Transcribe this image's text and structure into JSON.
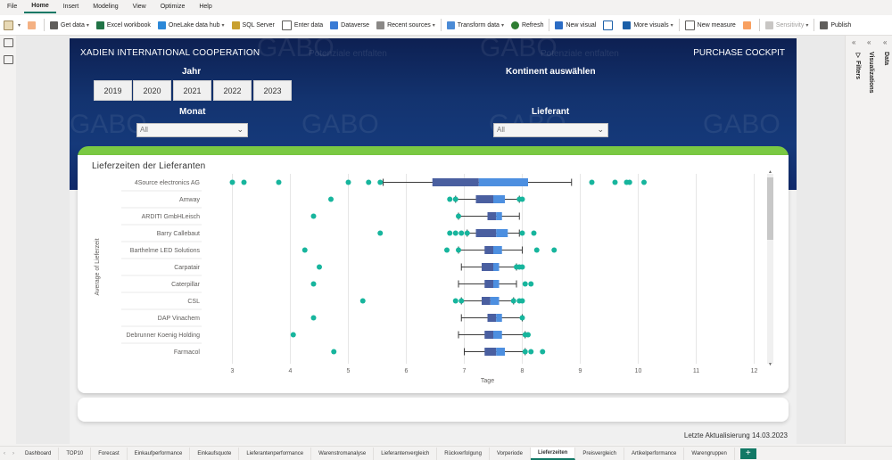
{
  "menu": [
    "File",
    "Home",
    "Insert",
    "Modeling",
    "View",
    "Optimize",
    "Help"
  ],
  "menu_active": "Home",
  "ribbon": {
    "get_data": "Get data",
    "excel": "Excel workbook",
    "onelake": "OneLake data hub",
    "sql": "SQL Server",
    "enter_data": "Enter data",
    "dataverse": "Dataverse",
    "recent": "Recent sources",
    "transform": "Transform data",
    "refresh": "Refresh",
    "new_visual": "New visual",
    "more_visuals": "More visuals",
    "new_measure": "New measure",
    "sensitivity": "Sensitivity",
    "publish": "Publish"
  },
  "report": {
    "company": "XADIEN INTERNATIONAL COOPERATION",
    "cockpit": "PURCHASE COCKPIT",
    "watermark": "GABO",
    "watermark_sub": "Potenziale entfalten",
    "jahr_label": "Jahr",
    "years": [
      "2019",
      "2020",
      "2021",
      "2022",
      "2023"
    ],
    "kontinent_label": "Kontinent auswählen",
    "monat_label": "Monat",
    "monat_value": "All",
    "lieferant_label": "Lieferant",
    "lieferant_value": "All",
    "last_update": "Letzte Aktualisierung  14.03.2023"
  },
  "right_pane": {
    "filters": "Filters",
    "visualizations": "Visualizations",
    "data": "Data"
  },
  "tabs": [
    "Dashboard",
    "TOP10",
    "Forecast",
    "Einkaufperformance",
    "Einkaufsquote",
    "Lieferantenperformance",
    "Warenstromanalyse",
    "Lieferantenvergleich",
    "Rückverfolgung",
    "Vorperiode",
    "Lieferzeiten",
    "Preisvergleich",
    "Artikelperformance",
    "Warengruppen"
  ],
  "active_tab": "Lieferzeiten",
  "colors": {
    "box_dark": "#4a5fa0",
    "box_light": "#4d8fe0",
    "outlier": "#17b59d",
    "green": "#7ac943",
    "navy": "#13336f"
  },
  "chart_data": {
    "type": "box",
    "title": "Lieferzeiten der Lieferanten",
    "xlabel": "Tage",
    "ylabel": "Average of Lieferzeit",
    "xlim": [
      2.5,
      12.1
    ],
    "xticks": [
      3,
      4,
      5,
      6,
      7,
      8,
      9,
      10,
      11,
      12
    ],
    "suppliers": [
      {
        "name": "4Source electronics AG",
        "min": 5.6,
        "q1": 6.45,
        "median": 7.25,
        "q3": 8.1,
        "max": 8.85,
        "outliers": [
          3.0,
          3.2,
          3.8,
          5.0,
          5.35,
          5.55,
          9.2,
          9.6,
          9.8,
          9.85,
          10.1
        ]
      },
      {
        "name": "Amway",
        "min": 6.85,
        "q1": 7.2,
        "median": 7.5,
        "q3": 7.7,
        "max": 7.95,
        "outliers": [
          4.7,
          6.75,
          6.85,
          7.95,
          8.0
        ]
      },
      {
        "name": "ARDITI GmbHLeisch",
        "min": 6.9,
        "q1": 7.4,
        "median": 7.55,
        "q3": 7.65,
        "max": 7.95,
        "outliers": [
          4.4,
          6.9
        ]
      },
      {
        "name": "Barry Callebaut",
        "min": 7.05,
        "q1": 7.2,
        "median": 7.55,
        "q3": 7.75,
        "max": 7.95,
        "outliers": [
          5.55,
          6.75,
          6.85,
          6.95,
          7.05,
          8.0,
          8.2
        ]
      },
      {
        "name": "Barthelme LED Solutions",
        "min": 6.9,
        "q1": 7.35,
        "median": 7.5,
        "q3": 7.65,
        "max": 8.0,
        "outliers": [
          4.25,
          6.7,
          6.9,
          8.25,
          8.55
        ]
      },
      {
        "name": "Carpatair",
        "min": 6.95,
        "q1": 7.3,
        "median": 7.5,
        "q3": 7.6,
        "max": 7.9,
        "outliers": [
          4.5,
          7.9,
          7.95,
          8.0
        ]
      },
      {
        "name": "Caterpillar",
        "min": 6.9,
        "q1": 7.35,
        "median": 7.5,
        "q3": 7.6,
        "max": 7.9,
        "outliers": [
          4.4,
          8.05,
          8.15
        ]
      },
      {
        "name": "CSL",
        "min": 6.95,
        "q1": 7.3,
        "median": 7.45,
        "q3": 7.6,
        "max": 7.85,
        "outliers": [
          5.25,
          6.85,
          6.95,
          7.85,
          7.95,
          8.0
        ]
      },
      {
        "name": "DAP Vinachem",
        "min": 6.95,
        "q1": 7.4,
        "median": 7.55,
        "q3": 7.65,
        "max": 8.0,
        "outliers": [
          4.4,
          8.0
        ]
      },
      {
        "name": "Debrunner Koenig Holding",
        "min": 6.9,
        "q1": 7.35,
        "median": 7.5,
        "q3": 7.65,
        "max": 8.05,
        "outliers": [
          4.05,
          8.05,
          8.1
        ]
      },
      {
        "name": "Farmacol",
        "min": 7.0,
        "q1": 7.35,
        "median": 7.55,
        "q3": 7.7,
        "max": 8.05,
        "outliers": [
          4.75,
          8.05,
          8.15,
          8.35
        ]
      }
    ]
  }
}
